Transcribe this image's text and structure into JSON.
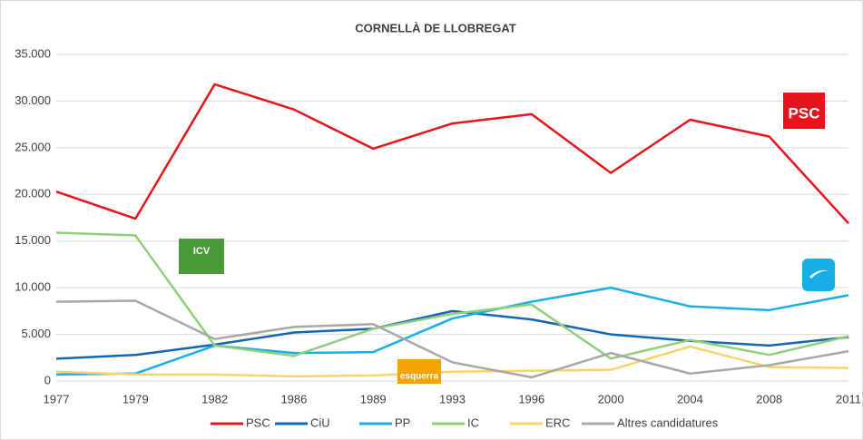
{
  "chart_data": {
    "type": "line",
    "title": "CORNELLÀ DE LLOBREGAT",
    "categories": [
      "1977",
      "1979",
      "1982",
      "1986",
      "1989",
      "1993",
      "1996",
      "2000",
      "2004",
      "2008",
      "2011"
    ],
    "series": [
      {
        "name": "PSC",
        "color": "#e8141b",
        "values": [
          20300,
          17400,
          31800,
          29100,
          24900,
          27600,
          28600,
          22300,
          28000,
          26200,
          16900
        ]
      },
      {
        "name": "CiU",
        "color": "#1565b0",
        "values": [
          2400,
          2800,
          3900,
          5200,
          5600,
          7500,
          6600,
          5000,
          4300,
          3800,
          4700
        ]
      },
      {
        "name": "PP",
        "color": "#1aaee8",
        "values": [
          700,
          800,
          3800,
          3000,
          3100,
          6700,
          8500,
          10000,
          8000,
          7600,
          9200
        ]
      },
      {
        "name": "IC",
        "color": "#8fcf7a",
        "values": [
          15900,
          15600,
          3800,
          2700,
          5600,
          7200,
          8200,
          2400,
          4400,
          2800,
          4800
        ]
      },
      {
        "name": "ERC",
        "color": "#f9d36a",
        "values": [
          1000,
          700,
          700,
          500,
          600,
          1000,
          1100,
          1200,
          3700,
          1500,
          1400
        ]
      },
      {
        "name": "Altres candidatures",
        "color": "#a8a8a8",
        "values": [
          8500,
          8600,
          4500,
          5800,
          6100,
          2000,
          400,
          3000,
          800,
          1700,
          3200
        ]
      }
    ],
    "ylim": [
      0,
      35000
    ],
    "yticks": [
      0,
      {
        "value": 5000,
        "label": "5.000"
      },
      {
        "value": 10000,
        "label": "10.000"
      },
      {
        "value": 15000,
        "label": "15.000"
      },
      {
        "value": 20000,
        "label": "20.000"
      },
      {
        "value": 25000,
        "label": "25.000"
      },
      {
        "value": 30000,
        "label": "30.000"
      },
      {
        "value": 35000,
        "label": "35.000"
      }
    ],
    "grid": true,
    "annotations": [
      "PSC",
      "ICV",
      "esquerra"
    ]
  }
}
